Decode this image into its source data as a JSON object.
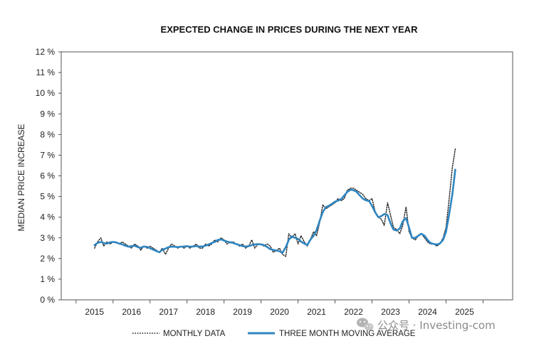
{
  "chart_data": {
    "type": "line",
    "title": "EXPECTED CHANGE IN PRICES DURING THE NEXT YEAR",
    "ylabel": "MEDIAN PRICE INCREASE",
    "xlabel": "",
    "ylim": [
      0,
      12
    ],
    "xlim": [
      2014.1,
      2026.3
    ],
    "y_ticks": [
      0,
      1,
      2,
      3,
      4,
      5,
      6,
      7,
      8,
      9,
      10,
      11,
      12
    ],
    "y_tick_labels": [
      "0 %",
      "1 %",
      "2 %",
      "3 %",
      "4 %",
      "5 %",
      "6 %",
      "7 %",
      "8 %",
      "9 %",
      "10 %",
      "11 %",
      "12 %"
    ],
    "x_ticks": [
      2015,
      2016,
      2017,
      2018,
      2019,
      2020,
      2021,
      2022,
      2023,
      2024,
      2025
    ],
    "x_tick_labels": [
      "2015",
      "2016",
      "2017",
      "2018",
      "2019",
      "2020",
      "2021",
      "2022",
      "2023",
      "2024",
      "2025"
    ],
    "grid": false,
    "legend_position": "bottom",
    "series": [
      {
        "name": "MONTHLY DATA",
        "style": "dotted",
        "color": "#222222",
        "points": [
          [
            2015.0,
            2.5
          ],
          [
            2015.08,
            2.8
          ],
          [
            2015.17,
            3.0
          ],
          [
            2015.25,
            2.6
          ],
          [
            2015.33,
            2.8
          ],
          [
            2015.42,
            2.7
          ],
          [
            2015.5,
            2.8
          ],
          [
            2015.58,
            2.8
          ],
          [
            2015.67,
            2.7
          ],
          [
            2015.75,
            2.8
          ],
          [
            2015.83,
            2.7
          ],
          [
            2015.92,
            2.6
          ],
          [
            2016.0,
            2.5
          ],
          [
            2016.08,
            2.7
          ],
          [
            2016.17,
            2.6
          ],
          [
            2016.25,
            2.4
          ],
          [
            2016.33,
            2.6
          ],
          [
            2016.42,
            2.5
          ],
          [
            2016.5,
            2.6
          ],
          [
            2016.58,
            2.5
          ],
          [
            2016.67,
            2.4
          ],
          [
            2016.75,
            2.3
          ],
          [
            2016.83,
            2.5
          ],
          [
            2016.92,
            2.2
          ],
          [
            2017.0,
            2.5
          ],
          [
            2017.08,
            2.7
          ],
          [
            2017.17,
            2.6
          ],
          [
            2017.25,
            2.5
          ],
          [
            2017.33,
            2.6
          ],
          [
            2017.42,
            2.5
          ],
          [
            2017.5,
            2.6
          ],
          [
            2017.58,
            2.5
          ],
          [
            2017.67,
            2.6
          ],
          [
            2017.75,
            2.7
          ],
          [
            2017.83,
            2.5
          ],
          [
            2017.92,
            2.5
          ],
          [
            2018.0,
            2.7
          ],
          [
            2018.08,
            2.6
          ],
          [
            2018.17,
            2.7
          ],
          [
            2018.25,
            2.9
          ],
          [
            2018.33,
            2.8
          ],
          [
            2018.42,
            3.0
          ],
          [
            2018.5,
            2.9
          ],
          [
            2018.58,
            2.7
          ],
          [
            2018.67,
            2.8
          ],
          [
            2018.75,
            2.8
          ],
          [
            2018.83,
            2.7
          ],
          [
            2018.92,
            2.6
          ],
          [
            2019.0,
            2.7
          ],
          [
            2019.08,
            2.5
          ],
          [
            2019.17,
            2.6
          ],
          [
            2019.25,
            2.9
          ],
          [
            2019.33,
            2.5
          ],
          [
            2019.42,
            2.7
          ],
          [
            2019.5,
            2.7
          ],
          [
            2019.58,
            2.6
          ],
          [
            2019.67,
            2.7
          ],
          [
            2019.75,
            2.6
          ],
          [
            2019.83,
            2.3
          ],
          [
            2019.92,
            2.4
          ],
          [
            2020.0,
            2.5
          ],
          [
            2020.08,
            2.2
          ],
          [
            2020.17,
            2.1
          ],
          [
            2020.25,
            3.2
          ],
          [
            2020.33,
            3.0
          ],
          [
            2020.42,
            3.2
          ],
          [
            2020.5,
            2.7
          ],
          [
            2020.58,
            3.1
          ],
          [
            2020.67,
            2.8
          ],
          [
            2020.75,
            2.6
          ],
          [
            2020.83,
            2.9
          ],
          [
            2020.92,
            3.3
          ],
          [
            2021.0,
            3.1
          ],
          [
            2021.08,
            3.7
          ],
          [
            2021.17,
            4.6
          ],
          [
            2021.25,
            4.4
          ],
          [
            2021.33,
            4.5
          ],
          [
            2021.42,
            4.6
          ],
          [
            2021.5,
            4.7
          ],
          [
            2021.58,
            4.9
          ],
          [
            2021.67,
            4.8
          ],
          [
            2021.75,
            4.9
          ],
          [
            2021.83,
            5.3
          ],
          [
            2021.92,
            5.4
          ],
          [
            2022.0,
            5.4
          ],
          [
            2022.08,
            5.3
          ],
          [
            2022.17,
            5.2
          ],
          [
            2022.25,
            5.1
          ],
          [
            2022.33,
            4.9
          ],
          [
            2022.42,
            4.8
          ],
          [
            2022.5,
            4.9
          ],
          [
            2022.58,
            4.3
          ],
          [
            2022.67,
            4.0
          ],
          [
            2022.75,
            3.9
          ],
          [
            2022.83,
            3.6
          ],
          [
            2022.92,
            4.7
          ],
          [
            2023.0,
            4.1
          ],
          [
            2023.08,
            3.5
          ],
          [
            2023.17,
            3.4
          ],
          [
            2023.25,
            3.2
          ],
          [
            2023.33,
            3.6
          ],
          [
            2023.42,
            4.5
          ],
          [
            2023.5,
            3.3
          ],
          [
            2023.58,
            3.0
          ],
          [
            2023.67,
            2.9
          ],
          [
            2023.75,
            3.1
          ],
          [
            2023.83,
            3.2
          ],
          [
            2023.92,
            3.0
          ],
          [
            2024.0,
            2.8
          ],
          [
            2024.08,
            2.7
          ],
          [
            2024.17,
            2.7
          ],
          [
            2024.25,
            2.6
          ],
          [
            2024.33,
            2.7
          ],
          [
            2024.42,
            3.0
          ],
          [
            2024.5,
            3.5
          ],
          [
            2024.58,
            4.8
          ],
          [
            2024.67,
            6.4
          ],
          [
            2024.75,
            7.3
          ]
        ]
      },
      {
        "name": "THREE MONTH MOVING AVERAGE",
        "style": "solid",
        "color": "#2e86c1",
        "points": [
          [
            2015.0,
            2.65
          ],
          [
            2015.08,
            2.75
          ],
          [
            2015.17,
            2.8
          ],
          [
            2015.25,
            2.75
          ],
          [
            2015.33,
            2.72
          ],
          [
            2015.42,
            2.78
          ],
          [
            2015.5,
            2.8
          ],
          [
            2015.58,
            2.78
          ],
          [
            2015.67,
            2.72
          ],
          [
            2015.75,
            2.68
          ],
          [
            2015.83,
            2.62
          ],
          [
            2015.92,
            2.57
          ],
          [
            2016.0,
            2.6
          ],
          [
            2016.08,
            2.62
          ],
          [
            2016.17,
            2.55
          ],
          [
            2016.25,
            2.52
          ],
          [
            2016.33,
            2.58
          ],
          [
            2016.42,
            2.56
          ],
          [
            2016.5,
            2.5
          ],
          [
            2016.58,
            2.43
          ],
          [
            2016.67,
            2.36
          ],
          [
            2016.75,
            2.3
          ],
          [
            2016.83,
            2.42
          ],
          [
            2016.92,
            2.48
          ],
          [
            2017.0,
            2.55
          ],
          [
            2017.08,
            2.57
          ],
          [
            2017.17,
            2.57
          ],
          [
            2017.25,
            2.55
          ],
          [
            2017.33,
            2.57
          ],
          [
            2017.42,
            2.58
          ],
          [
            2017.5,
            2.6
          ],
          [
            2017.58,
            2.57
          ],
          [
            2017.67,
            2.58
          ],
          [
            2017.75,
            2.6
          ],
          [
            2017.83,
            2.58
          ],
          [
            2017.92,
            2.58
          ],
          [
            2018.0,
            2.62
          ],
          [
            2018.08,
            2.68
          ],
          [
            2018.17,
            2.75
          ],
          [
            2018.25,
            2.8
          ],
          [
            2018.33,
            2.9
          ],
          [
            2018.42,
            2.92
          ],
          [
            2018.5,
            2.87
          ],
          [
            2018.58,
            2.82
          ],
          [
            2018.67,
            2.78
          ],
          [
            2018.75,
            2.75
          ],
          [
            2018.83,
            2.7
          ],
          [
            2018.92,
            2.65
          ],
          [
            2019.0,
            2.6
          ],
          [
            2019.08,
            2.58
          ],
          [
            2019.17,
            2.6
          ],
          [
            2019.25,
            2.65
          ],
          [
            2019.33,
            2.68
          ],
          [
            2019.42,
            2.7
          ],
          [
            2019.5,
            2.68
          ],
          [
            2019.58,
            2.65
          ],
          [
            2019.67,
            2.55
          ],
          [
            2019.75,
            2.45
          ],
          [
            2019.83,
            2.42
          ],
          [
            2019.92,
            2.38
          ],
          [
            2020.0,
            2.35
          ],
          [
            2020.08,
            2.28
          ],
          [
            2020.17,
            2.55
          ],
          [
            2020.25,
            2.9
          ],
          [
            2020.33,
            3.07
          ],
          [
            2020.42,
            3.0
          ],
          [
            2020.5,
            2.95
          ],
          [
            2020.58,
            2.82
          ],
          [
            2020.67,
            2.72
          ],
          [
            2020.75,
            2.65
          ],
          [
            2020.83,
            2.9
          ],
          [
            2020.92,
            3.1
          ],
          [
            2021.0,
            3.37
          ],
          [
            2021.08,
            3.8
          ],
          [
            2021.17,
            4.25
          ],
          [
            2021.25,
            4.48
          ],
          [
            2021.33,
            4.55
          ],
          [
            2021.42,
            4.65
          ],
          [
            2021.5,
            4.75
          ],
          [
            2021.58,
            4.8
          ],
          [
            2021.67,
            4.88
          ],
          [
            2021.75,
            5.05
          ],
          [
            2021.83,
            5.22
          ],
          [
            2021.92,
            5.33
          ],
          [
            2022.0,
            5.3
          ],
          [
            2022.08,
            5.23
          ],
          [
            2022.17,
            5.05
          ],
          [
            2022.25,
            4.9
          ],
          [
            2022.33,
            4.82
          ],
          [
            2022.42,
            4.78
          ],
          [
            2022.5,
            4.55
          ],
          [
            2022.58,
            4.25
          ],
          [
            2022.67,
            4.0
          ],
          [
            2022.75,
            4.05
          ],
          [
            2022.83,
            4.15
          ],
          [
            2022.92,
            4.1
          ],
          [
            2023.0,
            3.7
          ],
          [
            2023.08,
            3.4
          ],
          [
            2023.17,
            3.35
          ],
          [
            2023.25,
            3.45
          ],
          [
            2023.33,
            3.8
          ],
          [
            2023.42,
            3.95
          ],
          [
            2023.5,
            3.5
          ],
          [
            2023.58,
            3.0
          ],
          [
            2023.67,
            3.0
          ],
          [
            2023.75,
            3.1
          ],
          [
            2023.83,
            3.2
          ],
          [
            2023.92,
            3.1
          ],
          [
            2024.0,
            2.9
          ],
          [
            2024.08,
            2.75
          ],
          [
            2024.17,
            2.7
          ],
          [
            2024.25,
            2.68
          ],
          [
            2024.33,
            2.72
          ],
          [
            2024.42,
            2.9
          ],
          [
            2024.5,
            3.3
          ],
          [
            2024.58,
            4.1
          ],
          [
            2024.67,
            5.1
          ],
          [
            2024.75,
            6.3
          ]
        ]
      }
    ]
  },
  "watermark": {
    "text": "公众号 · Investing-com",
    "icon": "wechat-icon"
  }
}
